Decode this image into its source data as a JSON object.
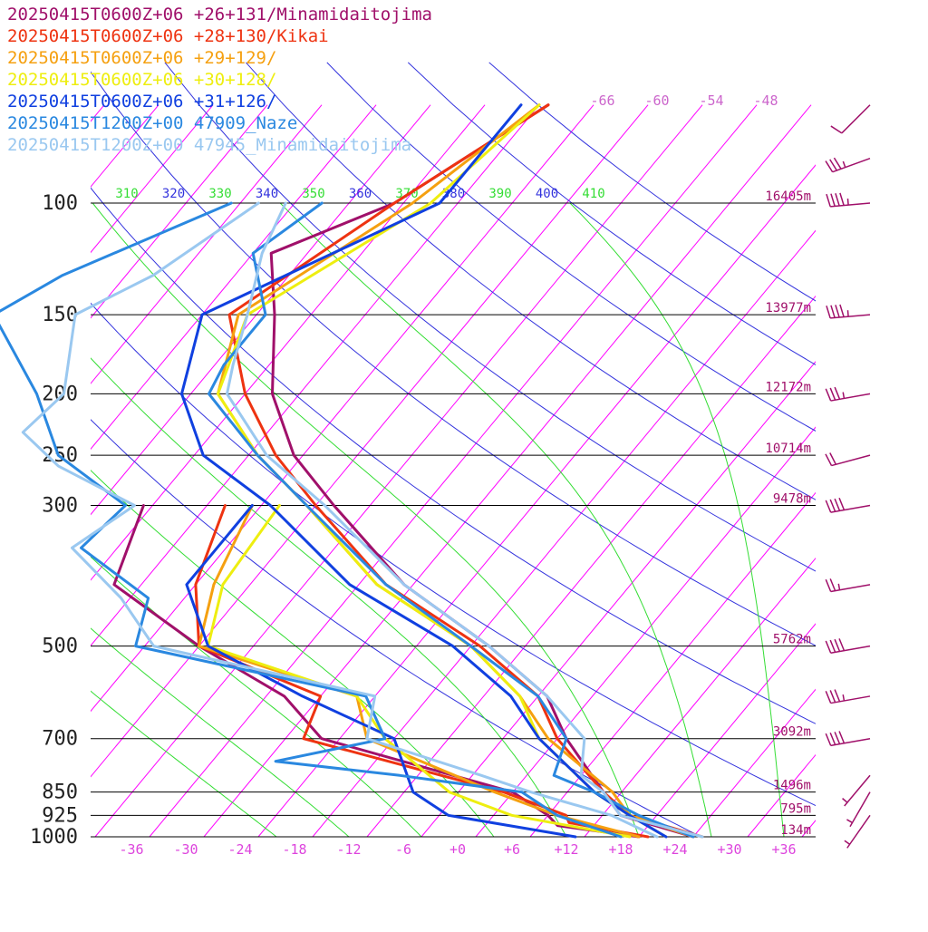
{
  "colors": {
    "isotherm": "#ff00ff",
    "dry_adiabat": "#3333dd",
    "moist_adiabat": "#33dd33",
    "isobar": "#000000",
    "temp_tick": "#dd44dd",
    "isotherm_label": "#cc66cc",
    "height_label": "#a0106a",
    "wind": "#a0106a"
  },
  "legend": [
    {
      "text": "20250415T0600Z+06 +26+131/Minamidaitojima",
      "color": "#a0106a"
    },
    {
      "text": "20250415T0600Z+06 +28+130/Kikai",
      "color": "#ee3311"
    },
    {
      "text": "20250415T0600Z+06 +29+129/",
      "color": "#f5a010"
    },
    {
      "text": "20250415T0600Z+06 +30+128/",
      "color": "#eeee10"
    },
    {
      "text": "20250415T0600Z+06 +31+126/",
      "color": "#1040e0"
    },
    {
      "text": "20250415T1200Z+00 47909_Naze",
      "color": "#2a88e0"
    },
    {
      "text": "20250415T1200Z+00 47945_Minamidaitojima",
      "color": "#9ac8f0"
    }
  ],
  "chart_data": {
    "type": "line",
    "chart_kind": "skew-T log-P diagram",
    "x_axis": {
      "ticks": [
        "-36",
        "-30",
        "-24",
        "-18",
        "-12",
        "-6",
        "+0",
        "+6",
        "+12",
        "+18",
        "+24",
        "+30",
        "+36"
      ],
      "range": [
        -40,
        40
      ]
    },
    "pressure_axis": {
      "scale": "log",
      "range": [
        100,
        1000
      ],
      "labels": [
        {
          "p": 100,
          "label": "100",
          "height": "16405m"
        },
        {
          "p": 150,
          "label": "150",
          "height": "13977m"
        },
        {
          "p": 200,
          "label": "200",
          "height": "12172m"
        },
        {
          "p": 250,
          "label": "250",
          "height": "10714m"
        },
        {
          "p": 300,
          "label": "300",
          "height": "9478m"
        },
        {
          "p": 500,
          "label": "500",
          "height": "5762m"
        },
        {
          "p": 700,
          "label": "700",
          "height": "3092m"
        },
        {
          "p": 850,
          "label": "850",
          "height": "1496m"
        },
        {
          "p": 925,
          "label": "925",
          "height": "795m"
        },
        {
          "p": 1000,
          "label": "1000",
          "height": "134m"
        }
      ]
    },
    "isotherm_labels": [
      "-66",
      "-60",
      "-54",
      "-48"
    ],
    "theta_labels": [
      {
        "text": "310",
        "color": "#33dd33"
      },
      {
        "text": "320",
        "color": "#3333dd"
      },
      {
        "text": "330",
        "color": "#33dd33"
      },
      {
        "text": "340",
        "color": "#3333dd"
      },
      {
        "text": "350",
        "color": "#33dd33"
      },
      {
        "text": "360",
        "color": "#3333dd"
      },
      {
        "text": "370",
        "color": "#33dd33"
      },
      {
        "text": "380",
        "color": "#3333dd"
      },
      {
        "text": "390",
        "color": "#33dd33"
      },
      {
        "text": "400",
        "color": "#3333dd"
      },
      {
        "text": "410",
        "color": "#33dd33"
      }
    ],
    "series": [
      {
        "name": "20250415T0600Z+06 +26+131/Minamidaitojima",
        "color": "#a0106a",
        "temperature": [
          [
            70,
            -57
          ],
          [
            100,
            -65
          ],
          [
            120,
            -74
          ],
          [
            150,
            -68
          ],
          [
            200,
            -61
          ],
          [
            250,
            -53
          ],
          [
            300,
            -44
          ],
          [
            400,
            -29
          ],
          [
            500,
            -14
          ],
          [
            600,
            -3
          ],
          [
            700,
            3
          ],
          [
            850,
            12
          ],
          [
            925,
            16
          ],
          [
            1000,
            26
          ]
        ],
        "dewpoint": [
          [
            300,
            -65
          ],
          [
            400,
            -61
          ],
          [
            500,
            -46
          ],
          [
            600,
            -32
          ],
          [
            700,
            -24
          ],
          [
            850,
            2
          ],
          [
            925,
            8
          ],
          [
            960,
            10
          ],
          [
            1000,
            20
          ]
        ]
      },
      {
        "name": "20250415T0600Z+06 +28+130/Kikai",
        "color": "#ee3311",
        "temperature": [
          [
            70,
            -57
          ],
          [
            100,
            -65
          ],
          [
            150,
            -73
          ],
          [
            200,
            -64
          ],
          [
            250,
            -55
          ],
          [
            300,
            -46
          ],
          [
            400,
            -31
          ],
          [
            500,
            -15
          ],
          [
            600,
            -4
          ],
          [
            700,
            2
          ],
          [
            850,
            12
          ],
          [
            925,
            17
          ],
          [
            1000,
            27
          ]
        ],
        "dewpoint": [
          [
            300,
            -56
          ],
          [
            400,
            -52
          ],
          [
            500,
            -46
          ],
          [
            600,
            -28
          ],
          [
            700,
            -26
          ],
          [
            850,
            1
          ],
          [
            925,
            10
          ],
          [
            950,
            11
          ],
          [
            1000,
            21
          ]
        ]
      },
      {
        "name": "20250415T0600Z+06 +29+129/",
        "color": "#f5a010",
        "temperature": [
          [
            70,
            -58
          ],
          [
            100,
            -63
          ],
          [
            150,
            -72
          ],
          [
            200,
            -67
          ],
          [
            250,
            -57
          ],
          [
            300,
            -47
          ],
          [
            400,
            -32
          ],
          [
            500,
            -16
          ],
          [
            600,
            -6
          ],
          [
            700,
            1
          ],
          [
            850,
            13
          ],
          [
            925,
            17
          ],
          [
            1000,
            26
          ]
        ],
        "dewpoint": [
          [
            300,
            -53
          ],
          [
            400,
            -50
          ],
          [
            500,
            -46
          ],
          [
            600,
            -24
          ],
          [
            700,
            -19
          ],
          [
            850,
            0
          ],
          [
            925,
            9
          ],
          [
            1000,
            20
          ]
        ]
      },
      {
        "name": "20250415T0600Z+06 +30+128/",
        "color": "#eeee10",
        "temperature": [
          [
            70,
            -58
          ],
          [
            100,
            -61
          ],
          [
            150,
            -71
          ],
          [
            200,
            -67
          ],
          [
            250,
            -57
          ],
          [
            300,
            -47
          ],
          [
            400,
            -32
          ],
          [
            500,
            -16
          ],
          [
            600,
            -6
          ],
          [
            700,
            0
          ],
          [
            850,
            11
          ],
          [
            925,
            17
          ],
          [
            1000,
            23
          ]
        ],
        "dewpoint": [
          [
            300,
            -50
          ],
          [
            400,
            -49
          ],
          [
            500,
            -45
          ],
          [
            600,
            -24
          ],
          [
            700,
            -17
          ],
          [
            850,
            -5
          ],
          [
            925,
            4
          ],
          [
            1000,
            19
          ]
        ]
      },
      {
        "name": "20250415T0600Z+06 +31+126/",
        "color": "#1040e0",
        "temperature": [
          [
            70,
            -60
          ],
          [
            100,
            -60
          ],
          [
            150,
            -76
          ],
          [
            200,
            -71
          ],
          [
            250,
            -63
          ],
          [
            300,
            -51
          ],
          [
            400,
            -35
          ],
          [
            500,
            -18
          ],
          [
            600,
            -7
          ],
          [
            700,
            0
          ],
          [
            850,
            11
          ],
          [
            925,
            17
          ],
          [
            1000,
            23
          ]
        ],
        "dewpoint": [
          [
            300,
            -53
          ],
          [
            400,
            -53
          ],
          [
            500,
            -45
          ],
          [
            600,
            -30
          ],
          [
            700,
            -16
          ],
          [
            850,
            -9
          ],
          [
            925,
            -3
          ],
          [
            1000,
            13
          ]
        ]
      },
      {
        "name": "20250415T1200Z+00 47909_Naze",
        "color": "#2a88e0",
        "temperature": [
          [
            100,
            -73
          ],
          [
            120,
            -76
          ],
          [
            150,
            -69
          ],
          [
            180,
            -69
          ],
          [
            200,
            -68
          ],
          [
            250,
            -57
          ],
          [
            300,
            -47
          ],
          [
            400,
            -31
          ],
          [
            500,
            -16
          ],
          [
            600,
            -4
          ],
          [
            700,
            3
          ],
          [
            800,
            5
          ],
          [
            850,
            11
          ],
          [
            925,
            18
          ],
          [
            1000,
            26
          ]
        ],
        "dewpoint": [
          [
            100,
            -83
          ],
          [
            130,
            -95
          ],
          [
            150,
            -99
          ],
          [
            200,
            -87
          ],
          [
            250,
            -79
          ],
          [
            300,
            -67
          ],
          [
            350,
            -68
          ],
          [
            420,
            -56
          ],
          [
            500,
            -53
          ],
          [
            600,
            -23
          ],
          [
            700,
            -17
          ],
          [
            760,
            -27
          ],
          [
            800,
            -12
          ],
          [
            850,
            3
          ],
          [
            925,
            9
          ],
          [
            1000,
            18
          ]
        ]
      },
      {
        "name": "20250415T1200Z+00 47945_Minamidaitojima",
        "color": "#9ac8f0",
        "temperature": [
          [
            100,
            -77
          ],
          [
            120,
            -75
          ],
          [
            150,
            -71
          ],
          [
            180,
            -68
          ],
          [
            200,
            -66
          ],
          [
            250,
            -56
          ],
          [
            300,
            -45
          ],
          [
            400,
            -29
          ],
          [
            500,
            -14
          ],
          [
            600,
            -3
          ],
          [
            700,
            5
          ],
          [
            800,
            8
          ],
          [
            850,
            12
          ],
          [
            925,
            16
          ],
          [
            1000,
            27
          ]
        ],
        "dewpoint": [
          [
            100,
            -80
          ],
          [
            130,
            -85
          ],
          [
            150,
            -90
          ],
          [
            200,
            -84
          ],
          [
            230,
            -85
          ],
          [
            260,
            -78
          ],
          [
            300,
            -66
          ],
          [
            350,
            -69
          ],
          [
            420,
            -59
          ],
          [
            500,
            -51
          ],
          [
            600,
            -22
          ],
          [
            700,
            -19
          ],
          [
            800,
            -3
          ],
          [
            850,
            4
          ],
          [
            925,
            15
          ],
          [
            1000,
            22
          ]
        ]
      }
    ],
    "wind_barbs": [
      {
        "p": 70,
        "dir": 225,
        "speed": 10
      },
      {
        "p": 85,
        "dir": 250,
        "speed": 35
      },
      {
        "p": 100,
        "dir": 265,
        "speed": 45
      },
      {
        "p": 150,
        "dir": 265,
        "speed": 45
      },
      {
        "p": 200,
        "dir": 260,
        "speed": 35
      },
      {
        "p": 250,
        "dir": 255,
        "speed": 20
      },
      {
        "p": 300,
        "dir": 260,
        "speed": 40
      },
      {
        "p": 400,
        "dir": 260,
        "speed": 25
      },
      {
        "p": 500,
        "dir": 260,
        "speed": 40
      },
      {
        "p": 600,
        "dir": 260,
        "speed": 35
      },
      {
        "p": 700,
        "dir": 260,
        "speed": 40
      },
      {
        "p": 800,
        "dir": 220,
        "speed": 5
      },
      {
        "p": 850,
        "dir": 210,
        "speed": 5
      },
      {
        "p": 925,
        "dir": 215,
        "speed": 5
      }
    ]
  }
}
